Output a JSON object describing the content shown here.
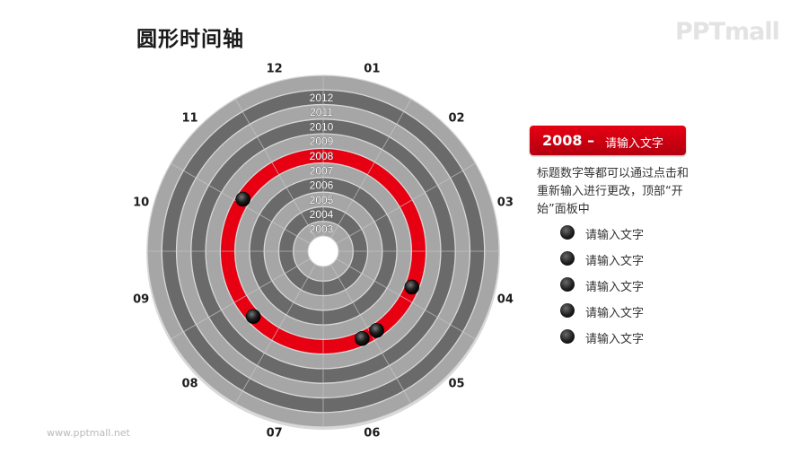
{
  "title": "圆形时间轴",
  "logo": "PPTmall",
  "footer": "www.pptmall.net",
  "months": [
    "01",
    "02",
    "03",
    "04",
    "05",
    "06",
    "07",
    "08",
    "09",
    "10",
    "11",
    "12"
  ],
  "years": [
    "2003",
    "2004",
    "2005",
    "2006",
    "2007",
    "2008",
    "2009",
    "2010",
    "2011",
    "2012"
  ],
  "highlight": {
    "year": "2008",
    "dash": "–",
    "label": "请输入文字",
    "color": "#e60012"
  },
  "description": "标题数字等都可以通过点击和重新输入进行更改，顶部“开始”面板中",
  "list": [
    "请输入文字",
    "请输入文字",
    "请输入文字",
    "请输入文字",
    "请输入文字"
  ],
  "colors": {
    "ring_dark": "#6a6a6a",
    "ring_light": "#a6a6a6",
    "accent": "#e60012"
  }
}
